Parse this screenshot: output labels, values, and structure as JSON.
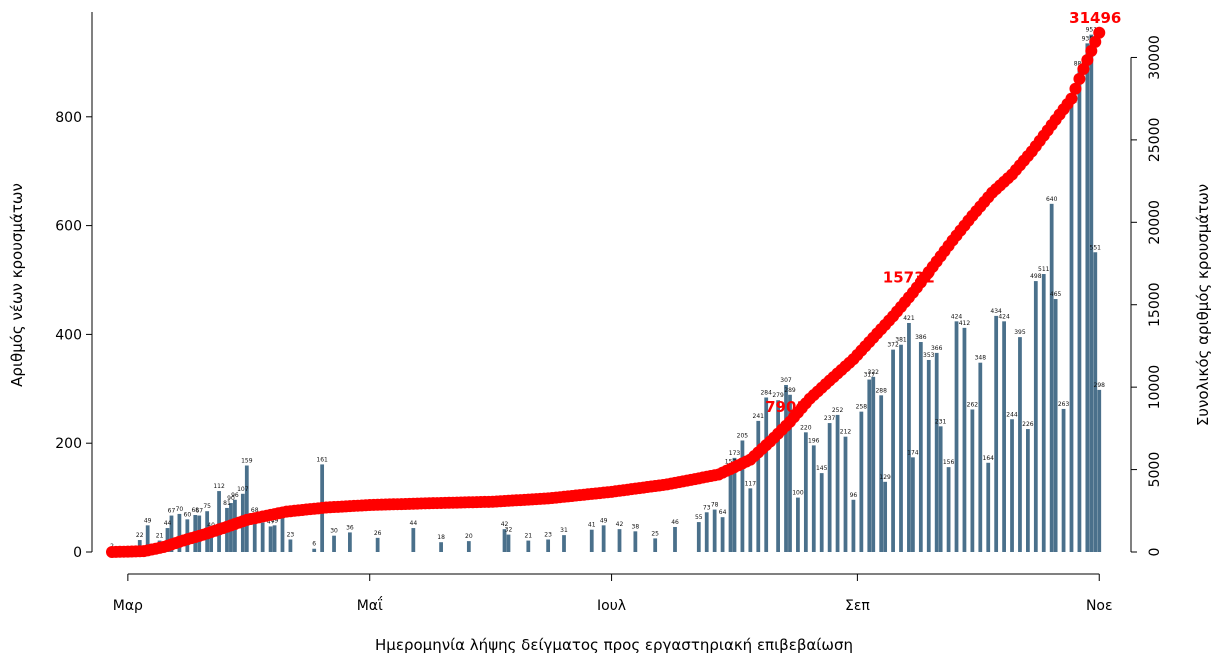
{
  "chart_data": {
    "type": "bar+line",
    "title": "",
    "xlabel": "Ημερομηνία λήψης δείγματος προς εργαστηριακή επιβεβαίωση",
    "ylabel_left": "Αριθμός νέων κρουσμάτων",
    "ylabel_right": "Συνολικός αριθμός κρουσμάτων",
    "x_range": [
      "2020-02-26",
      "2020-11-08"
    ],
    "x_ticks": [
      {
        "date": "2020-03-01",
        "label": "Μαρ"
      },
      {
        "date": "2020-05-01",
        "label": "Μαΐ"
      },
      {
        "date": "2020-07-01",
        "label": "Ιουλ"
      },
      {
        "date": "2020-09-01",
        "label": "Σεπ"
      },
      {
        "date": "2020-11-01",
        "label": "Νοε"
      }
    ],
    "ylim_left": [
      0,
      1000
    ],
    "yticks_left": [
      0,
      200,
      400,
      600,
      800
    ],
    "ylim_right": [
      0,
      33000
    ],
    "yticks_right": [
      0,
      5000,
      10000,
      15000,
      20000,
      25000,
      30000
    ],
    "grid": false,
    "colors": {
      "bars": "#4a708b",
      "cumulative": "#ff0000",
      "annotation": "#ff0000"
    },
    "series": [
      {
        "name": "",
        "type": "bar",
        "axis": "left",
        "points": [
          {
            "date": "2020-02-26",
            "value": 2
          },
          {
            "date": "2020-03-04",
            "value": 22
          },
          {
            "date": "2020-03-06",
            "value": 49
          },
          {
            "date": "2020-03-09",
            "value": 21
          },
          {
            "date": "2020-03-11",
            "value": 44
          },
          {
            "date": "2020-03-12",
            "value": 67
          },
          {
            "date": "2020-03-14",
            "value": 70
          },
          {
            "date": "2020-03-16",
            "value": 60
          },
          {
            "date": "2020-03-18",
            "value": 68
          },
          {
            "date": "2020-03-19",
            "value": 67
          },
          {
            "date": "2020-03-21",
            "value": 75
          },
          {
            "date": "2020-03-22",
            "value": 40
          },
          {
            "date": "2020-03-24",
            "value": 112
          },
          {
            "date": "2020-03-26",
            "value": 81
          },
          {
            "date": "2020-03-27",
            "value": 90
          },
          {
            "date": "2020-03-28",
            "value": 96
          },
          {
            "date": "2020-03-30",
            "value": 107
          },
          {
            "date": "2020-03-31",
            "value": 159
          },
          {
            "date": "2020-04-02",
            "value": 68
          },
          {
            "date": "2020-04-04",
            "value": 54
          },
          {
            "date": "2020-04-06",
            "value": 47
          },
          {
            "date": "2020-04-07",
            "value": 49
          },
          {
            "date": "2020-04-09",
            "value": 69
          },
          {
            "date": "2020-04-11",
            "value": 23
          },
          {
            "date": "2020-04-17",
            "value": 6
          },
          {
            "date": "2020-04-19",
            "value": 161
          },
          {
            "date": "2020-04-22",
            "value": 30
          },
          {
            "date": "2020-04-26",
            "value": 36
          },
          {
            "date": "2020-05-03",
            "value": 26
          },
          {
            "date": "2020-05-12",
            "value": 44
          },
          {
            "date": "2020-05-19",
            "value": 18
          },
          {
            "date": "2020-05-26",
            "value": 20
          },
          {
            "date": "2020-06-04",
            "value": 42
          },
          {
            "date": "2020-06-05",
            "value": 32
          },
          {
            "date": "2020-06-10",
            "value": 21
          },
          {
            "date": "2020-06-15",
            "value": 23
          },
          {
            "date": "2020-06-19",
            "value": 31
          },
          {
            "date": "2020-06-26",
            "value": 41
          },
          {
            "date": "2020-06-29",
            "value": 49
          },
          {
            "date": "2020-07-03",
            "value": 42
          },
          {
            "date": "2020-07-07",
            "value": 38
          },
          {
            "date": "2020-07-12",
            "value": 25
          },
          {
            "date": "2020-07-17",
            "value": 46
          },
          {
            "date": "2020-07-23",
            "value": 55
          },
          {
            "date": "2020-07-25",
            "value": 73
          },
          {
            "date": "2020-07-27",
            "value": 78
          },
          {
            "date": "2020-07-29",
            "value": 64
          },
          {
            "date": "2020-07-31",
            "value": 157
          },
          {
            "date": "2020-08-01",
            "value": 173
          },
          {
            "date": "2020-08-03",
            "value": 205
          },
          {
            "date": "2020-08-05",
            "value": 117
          },
          {
            "date": "2020-08-07",
            "value": 241
          },
          {
            "date": "2020-08-09",
            "value": 284
          },
          {
            "date": "2020-08-12",
            "value": 279
          },
          {
            "date": "2020-08-14",
            "value": 307
          },
          {
            "date": "2020-08-15",
            "value": 289
          },
          {
            "date": "2020-08-17",
            "value": 100
          },
          {
            "date": "2020-08-19",
            "value": 220
          },
          {
            "date": "2020-08-21",
            "value": 196
          },
          {
            "date": "2020-08-23",
            "value": 145
          },
          {
            "date": "2020-08-25",
            "value": 237
          },
          {
            "date": "2020-08-27",
            "value": 252
          },
          {
            "date": "2020-08-29",
            "value": 212
          },
          {
            "date": "2020-08-31",
            "value": 96
          },
          {
            "date": "2020-09-02",
            "value": 258
          },
          {
            "date": "2020-09-04",
            "value": 317
          },
          {
            "date": "2020-09-05",
            "value": 322
          },
          {
            "date": "2020-09-07",
            "value": 288
          },
          {
            "date": "2020-09-08",
            "value": 129
          },
          {
            "date": "2020-09-10",
            "value": 372
          },
          {
            "date": "2020-09-12",
            "value": 381
          },
          {
            "date": "2020-09-14",
            "value": 421
          },
          {
            "date": "2020-09-15",
            "value": 174
          },
          {
            "date": "2020-09-17",
            "value": 386
          },
          {
            "date": "2020-09-19",
            "value": 353
          },
          {
            "date": "2020-09-21",
            "value": 366
          },
          {
            "date": "2020-09-22",
            "value": 231
          },
          {
            "date": "2020-09-24",
            "value": 156
          },
          {
            "date": "2020-09-26",
            "value": 424
          },
          {
            "date": "2020-09-28",
            "value": 412
          },
          {
            "date": "2020-09-30",
            "value": 262
          },
          {
            "date": "2020-10-02",
            "value": 348
          },
          {
            "date": "2020-10-04",
            "value": 164
          },
          {
            "date": "2020-10-06",
            "value": 434
          },
          {
            "date": "2020-10-08",
            "value": 424
          },
          {
            "date": "2020-10-10",
            "value": 244
          },
          {
            "date": "2020-10-12",
            "value": 395
          },
          {
            "date": "2020-10-14",
            "value": 226
          },
          {
            "date": "2020-10-16",
            "value": 498
          },
          {
            "date": "2020-10-18",
            "value": 511
          },
          {
            "date": "2020-10-20",
            "value": 640
          },
          {
            "date": "2020-10-21",
            "value": 465
          },
          {
            "date": "2020-10-23",
            "value": 263
          },
          {
            "date": "2020-10-25",
            "value": 821
          },
          {
            "date": "2020-10-27",
            "value": 889
          },
          {
            "date": "2020-10-29",
            "value": 935
          },
          {
            "date": "2020-10-30",
            "value": 951
          },
          {
            "date": "2020-10-31",
            "value": 551
          },
          {
            "date": "2020-11-01",
            "value": 298
          }
        ]
      },
      {
        "name": "",
        "type": "line",
        "axis": "right",
        "points": [
          {
            "date": "2020-02-26",
            "value": 0
          },
          {
            "date": "2020-03-05",
            "value": 50
          },
          {
            "date": "2020-03-10",
            "value": 300
          },
          {
            "date": "2020-03-15",
            "value": 700
          },
          {
            "date": "2020-03-20",
            "value": 1050
          },
          {
            "date": "2020-03-25",
            "value": 1450
          },
          {
            "date": "2020-03-31",
            "value": 1950
          },
          {
            "date": "2020-04-10",
            "value": 2450
          },
          {
            "date": "2020-04-20",
            "value": 2700
          },
          {
            "date": "2020-05-01",
            "value": 2850
          },
          {
            "date": "2020-05-15",
            "value": 2950
          },
          {
            "date": "2020-06-01",
            "value": 3050
          },
          {
            "date": "2020-06-15",
            "value": 3250
          },
          {
            "date": "2020-07-01",
            "value": 3650
          },
          {
            "date": "2020-07-15",
            "value": 4100
          },
          {
            "date": "2020-07-28",
            "value": 4700
          },
          {
            "date": "2020-08-05",
            "value": 5600
          },
          {
            "date": "2020-08-10",
            "value": 6700
          },
          {
            "date": "2020-08-15",
            "value": 7900
          },
          {
            "date": "2020-08-20",
            "value": 9300
          },
          {
            "date": "2020-08-25",
            "value": 10400
          },
          {
            "date": "2020-08-31",
            "value": 11700
          },
          {
            "date": "2020-09-05",
            "value": 13000
          },
          {
            "date": "2020-09-10",
            "value": 14300
          },
          {
            "date": "2020-09-15",
            "value": 15732
          },
          {
            "date": "2020-09-20",
            "value": 17300
          },
          {
            "date": "2020-09-25",
            "value": 18900
          },
          {
            "date": "2020-09-30",
            "value": 20400
          },
          {
            "date": "2020-10-05",
            "value": 21800
          },
          {
            "date": "2020-10-10",
            "value": 22900
          },
          {
            "date": "2020-10-15",
            "value": 24300
          },
          {
            "date": "2020-10-20",
            "value": 25900
          },
          {
            "date": "2020-10-25",
            "value": 27500
          },
          {
            "date": "2020-10-28",
            "value": 29300
          },
          {
            "date": "2020-11-01",
            "value": 31496
          }
        ]
      }
    ],
    "annotations": [
      {
        "date": "2020-08-15",
        "value": 7901,
        "label": "7901"
      },
      {
        "date": "2020-09-15",
        "value": 15732,
        "label": "15732"
      },
      {
        "date": "2020-11-01",
        "value": 31496,
        "label": "31496"
      }
    ]
  }
}
